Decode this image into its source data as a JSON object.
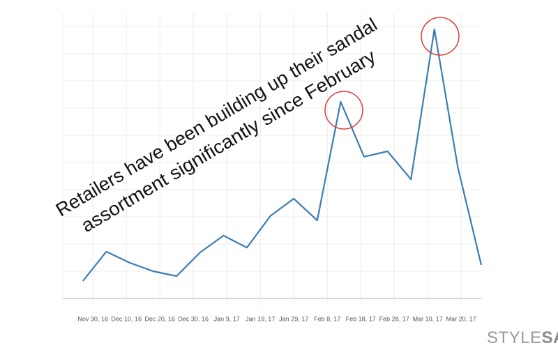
{
  "chart_data": {
    "type": "line",
    "annotations": [
      "Retailers have been building up their sandal",
      "assortment significantly since February"
    ],
    "x": [
      "2016-11-27",
      "2016-12-04",
      "2016-12-11",
      "2016-12-18",
      "2016-12-25",
      "2017-01-01",
      "2017-01-08",
      "2017-01-15",
      "2017-01-22",
      "2017-01-29",
      "2017-02-05",
      "2017-02-12",
      "2017-02-19",
      "2017-02-26",
      "2017-03-05",
      "2017-03-12",
      "2017-03-19",
      "2017-03-26"
    ],
    "series": [
      {
        "color": "#3a7db5",
        "values": [
          0.64,
          1.72,
          1.31,
          1.0,
          0.82,
          1.69,
          2.31,
          1.87,
          3.03,
          3.67,
          2.87,
          7.23,
          5.21,
          5.41,
          4.38,
          9.9,
          4.82,
          1.23
        ]
      }
    ],
    "xlim": [
      "2016-11-21",
      "2017-03-26"
    ],
    "xticks": [
      {
        "value": "2016-11-30",
        "label": "Nov 30, 16"
      },
      {
        "value": "2016-12-10",
        "label": "Dec 10, 16"
      },
      {
        "value": "2016-12-20",
        "label": "Dec 20, 16"
      },
      {
        "value": "2016-12-30",
        "label": "Dec 30, 16"
      },
      {
        "value": "2017-01-09",
        "label": "Jan 9, 17"
      },
      {
        "value": "2017-01-19",
        "label": "Jan 19, 17"
      },
      {
        "value": "2017-01-29",
        "label": "Jan 29, 17"
      },
      {
        "value": "2017-02-08",
        "label": "Feb 8, 17"
      },
      {
        "value": "2017-02-18",
        "label": "Feb 18, 17"
      },
      {
        "value": "2017-02-28",
        "label": "Feb 28, 17"
      },
      {
        "value": "2017-03-10",
        "label": "Mar 10, 17"
      },
      {
        "value": "2017-03-20",
        "label": "Mar 20, 17"
      }
    ],
    "ylim": [
      0,
      10.5
    ],
    "yticks": [
      0,
      1,
      2,
      3,
      4,
      5,
      6,
      7,
      8,
      9,
      10
    ],
    "grid": true
  },
  "brand": {
    "part1": "STYLE",
    "part2": "SAGE"
  }
}
